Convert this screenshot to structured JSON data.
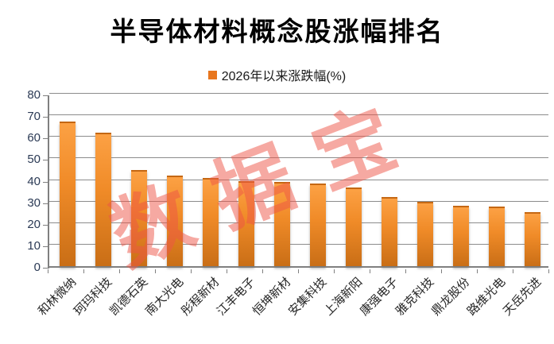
{
  "title": "半导体材料概念股涨幅排名",
  "legend": {
    "label": "2026年以来涨跌幅(%)",
    "swatch_color": "#E8761E"
  },
  "watermark": "数据宝",
  "chart_data": {
    "type": "bar",
    "title": "半导体材料概念股涨幅排名",
    "series_name": "2026年以来涨跌幅(%)",
    "categories": [
      "和林微纳",
      "珂玛科技",
      "凯德石英",
      "南大光电",
      "彤程新材",
      "江丰电子",
      "恒坤新材",
      "安集科技",
      "上海新阳",
      "康强电子",
      "雅克科技",
      "鼎龙股份",
      "路维光电",
      "天岳先进"
    ],
    "values": [
      67,
      62,
      44.5,
      42,
      41,
      39.5,
      39,
      38.5,
      36.5,
      32,
      30,
      28,
      27.5,
      25
    ],
    "xlabel": "",
    "ylabel": "",
    "ylim": [
      0,
      80
    ],
    "ytick_step": 10,
    "grid": true,
    "legend_position": "top",
    "xlabel_rotation_deg": 45,
    "colors": {
      "bar_top": "#FCA144",
      "bar_mid": "#F08B28",
      "bar_bottom": "#C96E16",
      "grid": "#8C8C8C",
      "axis": "#808080",
      "y_label": "#2B3A55",
      "x_label": "#262626",
      "watermark": "rgba(237,83,69,0.5)",
      "legend_swatch": "#E8761E"
    }
  }
}
